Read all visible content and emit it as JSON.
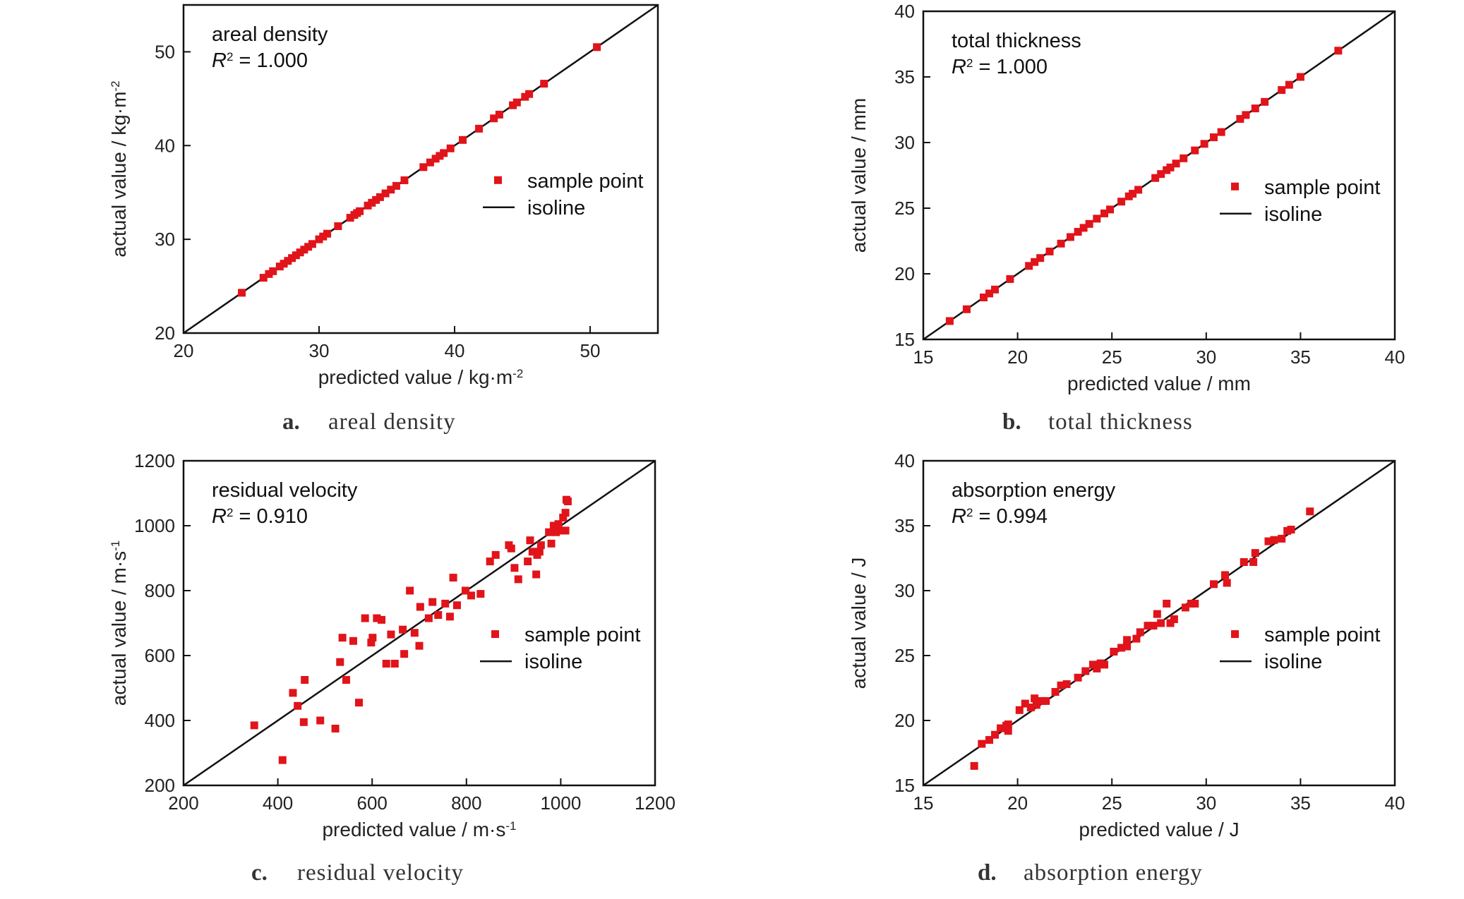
{
  "chart_data": [
    {
      "type": "scatter",
      "panel_letter": "a.",
      "caption": "areal density",
      "annotation_title": "areal density",
      "r2_prefix": "R",
      "r2_sup": "2",
      "r2_value": " = 1.000",
      "xlabel": "predicted value / kg·m",
      "xlabel_sup": "-2",
      "ylabel": "actual value / kg·m",
      "ylabel_sup": "-2",
      "xlim": [
        20,
        55
      ],
      "ylim": [
        20,
        55
      ],
      "xticks": [
        20,
        30,
        40,
        50
      ],
      "yticks": [
        20,
        30,
        40,
        50
      ],
      "legend": {
        "points": "sample point",
        "line": "isoline",
        "position": "right"
      },
      "series": [
        {
          "name": "sample point",
          "x": [
            24.3,
            25.9,
            26.3,
            26.6,
            27.1,
            27.4,
            27.7,
            28.0,
            28.3,
            28.6,
            28.9,
            29.2,
            29.5,
            30.0,
            30.3,
            30.6,
            31.4,
            32.3,
            32.6,
            32.8,
            33.0,
            33.6,
            33.9,
            34.2,
            34.5,
            34.9,
            35.3,
            35.7,
            36.3,
            37.7,
            38.2,
            38.6,
            38.9,
            39.2,
            39.7,
            40.6,
            41.8,
            42.9,
            43.3,
            44.3,
            44.6,
            45.2,
            45.5,
            46.6,
            50.5
          ],
          "y": [
            24.3,
            25.9,
            26.3,
            26.6,
            27.1,
            27.4,
            27.7,
            28.0,
            28.3,
            28.6,
            28.9,
            29.2,
            29.5,
            30.0,
            30.3,
            30.6,
            31.4,
            32.3,
            32.6,
            32.8,
            33.0,
            33.6,
            33.9,
            34.2,
            34.5,
            34.9,
            35.3,
            35.7,
            36.3,
            37.7,
            38.2,
            38.6,
            38.9,
            39.2,
            39.7,
            40.6,
            41.8,
            42.9,
            43.3,
            44.3,
            44.6,
            45.2,
            45.5,
            46.6,
            50.5
          ]
        }
      ],
      "isoline": [
        [
          20,
          20
        ],
        [
          55,
          55
        ]
      ]
    },
    {
      "type": "scatter",
      "panel_letter": "b.",
      "caption": "total thickness",
      "annotation_title": "total thickness",
      "r2_prefix": "R",
      "r2_sup": "2",
      "r2_value": " = 1.000",
      "xlabel": "predicted value / mm",
      "xlabel_sup": "",
      "ylabel": "actual value / mm",
      "ylabel_sup": "",
      "xlim": [
        15,
        40
      ],
      "ylim": [
        15,
        40
      ],
      "xticks": [
        15,
        20,
        25,
        30,
        35,
        40
      ],
      "yticks": [
        15,
        20,
        25,
        30,
        35,
        40
      ],
      "legend": {
        "points": "sample point",
        "line": "isoline",
        "position": "right"
      },
      "series": [
        {
          "name": "sample point",
          "x": [
            16.4,
            17.3,
            18.2,
            18.5,
            18.8,
            19.6,
            20.6,
            20.9,
            21.2,
            21.7,
            22.3,
            22.8,
            23.2,
            23.5,
            23.8,
            24.2,
            24.6,
            24.9,
            25.5,
            25.9,
            26.1,
            26.4,
            27.3,
            27.6,
            27.9,
            28.1,
            28.4,
            28.8,
            29.4,
            29.9,
            30.4,
            30.8,
            31.8,
            32.1,
            32.6,
            33.1,
            34.0,
            34.4,
            35.0,
            37.0
          ],
          "y": [
            16.4,
            17.3,
            18.2,
            18.5,
            18.8,
            19.6,
            20.6,
            20.9,
            21.2,
            21.7,
            22.3,
            22.8,
            23.2,
            23.5,
            23.8,
            24.2,
            24.6,
            24.9,
            25.5,
            25.9,
            26.1,
            26.4,
            27.3,
            27.6,
            27.9,
            28.1,
            28.4,
            28.8,
            29.4,
            29.9,
            30.4,
            30.8,
            31.8,
            32.1,
            32.6,
            33.1,
            34.0,
            34.4,
            35.0,
            37.0
          ]
        }
      ],
      "isoline": [
        [
          15,
          15
        ],
        [
          40,
          40
        ]
      ]
    },
    {
      "type": "scatter",
      "panel_letter": "c.",
      "caption": "residual velocity",
      "annotation_title": "residual velocity",
      "r2_prefix": "R",
      "r2_sup": "2",
      "r2_value": " = 0.910",
      "xlabel": "predicted value / m·s",
      "xlabel_sup": "-1",
      "ylabel": "actual value / m·s",
      "ylabel_sup": "-1",
      "xlim": [
        200,
        1200
      ],
      "ylim": [
        200,
        1200
      ],
      "xticks": [
        200,
        400,
        600,
        800,
        1000,
        1200
      ],
      "yticks": [
        200,
        400,
        600,
        800,
        1000,
        1200
      ],
      "legend": {
        "points": "sample point",
        "line": "isoline",
        "position": "right"
      },
      "series": [
        {
          "name": "sample point",
          "x": [
            350,
            410,
            432,
            442,
            455,
            457,
            490,
            522,
            532,
            537,
            545,
            560,
            572,
            585,
            598,
            601,
            610,
            620,
            630,
            640,
            648,
            665,
            668,
            680,
            690,
            700,
            702,
            720,
            728,
            740,
            755,
            765,
            772,
            780,
            798,
            810,
            830,
            850,
            862,
            890,
            895,
            902,
            910,
            930,
            935,
            940,
            948,
            950,
            955,
            958,
            975,
            980,
            985,
            990,
            995,
            1000,
            1005,
            1010,
            1010,
            1012,
            1015
          ],
          "y": [
            385,
            278,
            485,
            445,
            395,
            525,
            400,
            375,
            580,
            655,
            525,
            645,
            455,
            715,
            640,
            655,
            715,
            710,
            575,
            665,
            575,
            680,
            605,
            800,
            670,
            630,
            750,
            715,
            765,
            725,
            760,
            720,
            840,
            755,
            800,
            785,
            790,
            890,
            910,
            940,
            930,
            870,
            835,
            890,
            955,
            920,
            850,
            910,
            920,
            940,
            980,
            945,
            1000,
            980,
            1005,
            985,
            1025,
            1040,
            985,
            1080,
            1075
          ]
        }
      ],
      "isoline": [
        [
          200,
          200
        ],
        [
          1200,
          1200
        ]
      ]
    },
    {
      "type": "scatter",
      "panel_letter": "d.",
      "caption": "absorption energy",
      "annotation_title": "absorption energy",
      "r2_prefix": "R",
      "r2_sup": "2",
      "r2_value": " = 0.994",
      "xlabel": "predicted value / J",
      "xlabel_sup": "",
      "ylabel": "actual value / J",
      "ylabel_sup": "",
      "xlim": [
        15,
        40
      ],
      "ylim": [
        15,
        40
      ],
      "xticks": [
        15,
        20,
        25,
        30,
        35,
        40
      ],
      "yticks": [
        15,
        20,
        25,
        30,
        35,
        40
      ],
      "legend": {
        "points": "sample point",
        "line": "isoline",
        "position": "right"
      },
      "series": [
        {
          "name": "sample point",
          "x": [
            17.7,
            18.1,
            18.5,
            18.8,
            19.1,
            19.4,
            19.5,
            19.5,
            20.1,
            20.4,
            20.7,
            20.9,
            21.0,
            21.3,
            21.5,
            22.0,
            22.3,
            22.6,
            23.2,
            23.6,
            24.0,
            24.2,
            24.4,
            24.6,
            25.1,
            25.5,
            25.8,
            25.8,
            26.3,
            26.5,
            26.9,
            27.2,
            27.4,
            27.6,
            27.9,
            28.1,
            28.3,
            28.9,
            29.2,
            29.4,
            30.4,
            31.0,
            31.1,
            32.0,
            32.5,
            32.6,
            33.3,
            33.6,
            34.0,
            34.3,
            34.5,
            35.5
          ],
          "y": [
            16.5,
            18.2,
            18.5,
            18.9,
            19.4,
            19.6,
            19.2,
            19.7,
            20.8,
            21.3,
            21.0,
            21.7,
            21.2,
            21.5,
            21.5,
            22.2,
            22.7,
            22.8,
            23.3,
            23.8,
            24.3,
            24.0,
            24.4,
            24.3,
            25.3,
            25.6,
            26.2,
            25.7,
            26.3,
            26.8,
            27.3,
            27.3,
            28.2,
            27.5,
            29.0,
            27.5,
            27.8,
            28.7,
            29.0,
            29.0,
            30.5,
            31.2,
            30.6,
            32.2,
            32.2,
            32.9,
            33.8,
            33.9,
            34.0,
            34.6,
            34.7,
            36.1
          ]
        }
      ],
      "isoline": [
        [
          15,
          15
        ],
        [
          40,
          40
        ]
      ]
    }
  ],
  "colors": {
    "point": "#e0141a",
    "isoline": "#111111",
    "axis": "#111111",
    "text": "#222222",
    "caption": "#333333"
  }
}
